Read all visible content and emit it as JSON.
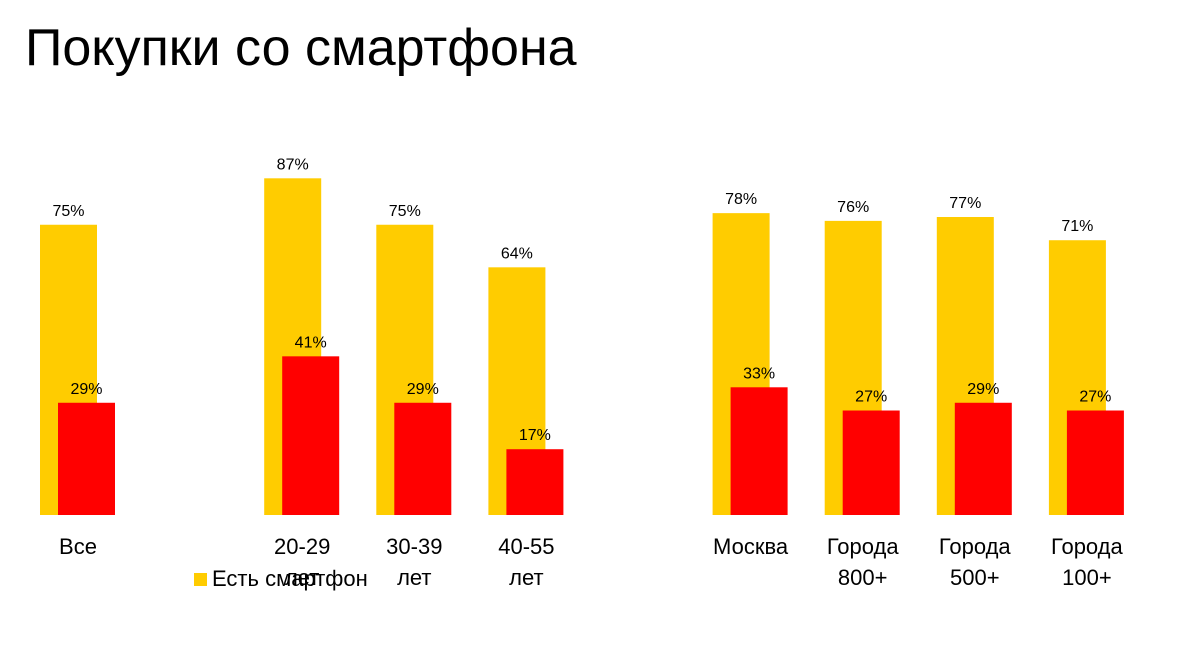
{
  "chart_data": {
    "type": "bar",
    "title": "Покупки со смартфона",
    "categories": [
      "Все",
      null,
      "20-29\nлет",
      "30-39\nлет",
      "40-55\nлет",
      null,
      "Москва",
      "Города\n800+",
      "Города\n500+",
      "Города\n100+"
    ],
    "series": [
      {
        "name": "Есть смартфон",
        "color": "#ffcc00",
        "values": [
          75,
          null,
          87,
          75,
          64,
          null,
          78,
          76,
          77,
          71
        ],
        "value_labels": [
          "75%",
          null,
          "87%",
          "75%",
          "64%",
          null,
          "78%",
          "76%",
          "77%",
          "71%"
        ]
      },
      {
        "color": "#ff0000",
        "values": [
          29,
          null,
          41,
          29,
          17,
          null,
          33,
          27,
          29,
          27
        ],
        "value_labels": [
          "29%",
          null,
          "41%",
          "29%",
          "17%",
          null,
          "33%",
          "27%",
          "29%",
          "27%"
        ]
      }
    ],
    "legend": "bottom-left"
  }
}
